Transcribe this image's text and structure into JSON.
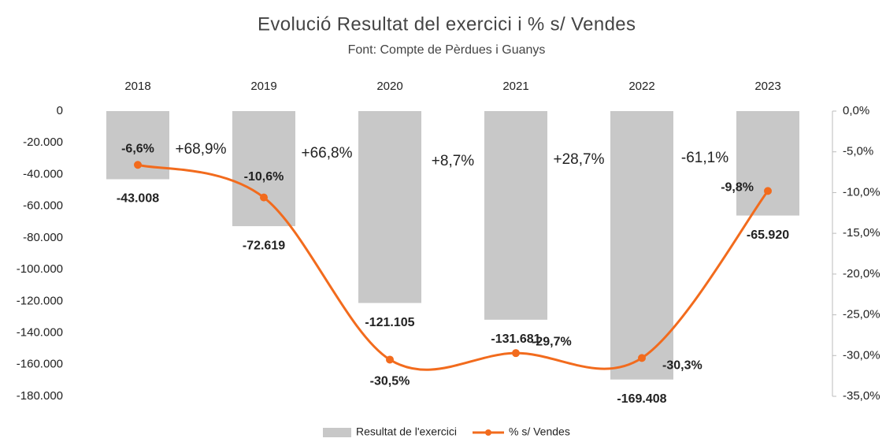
{
  "chart_data": {
    "type": "bar",
    "title": "Evolució Resultat del exercici i % s/ Vendes",
    "subtitle": "Font: Compte de Pèrdues i Guanys",
    "categories": [
      "2018",
      "2019",
      "2020",
      "2021",
      "2022",
      "2023"
    ],
    "series": [
      {
        "name": "Resultat de l'exercici",
        "type": "bar",
        "color": "#c8c8c8",
        "label_color": "#e8141e",
        "values": [
          -43008,
          -72619,
          -121105,
          -131681,
          -169408,
          -65920
        ],
        "value_labels": [
          "-43.008",
          "-72.619",
          "-121.105",
          "-131.681",
          "-169.408",
          "-65.920"
        ]
      },
      {
        "name": "% s/ Vendes",
        "type": "line",
        "axis": "y2",
        "color": "#f26b1d",
        "label_color": "#f07020",
        "values": [
          -6.6,
          -10.6,
          -30.5,
          -29.7,
          -30.3,
          -9.8
        ],
        "value_labels": [
          "-6,6%",
          "-10,6%",
          "-30,5%",
          "-29,7%",
          "-30,3%",
          "-9,8%"
        ]
      }
    ],
    "annotations": [
      {
        "text": "+68,9%",
        "color": "#f0606a"
      },
      {
        "text": "+66,8%",
        "color": "#f0606a"
      },
      {
        "text": "+8,7%",
        "color": "#f0606a"
      },
      {
        "text": "+28,7%",
        "color": "#f0606a"
      },
      {
        "text": "-61,1%",
        "color": "#4cba6b"
      }
    ],
    "ylim": [
      0,
      -180000
    ],
    "yticks": [
      0,
      {
        "value": -20000,
        "label": "-20.000"
      },
      {
        "value": -40000,
        "label": "-40.000"
      },
      {
        "value": -60000,
        "label": "-60.000"
      },
      {
        "value": -80000,
        "label": "-80.000"
      },
      {
        "value": -100000,
        "label": "-100.000"
      },
      {
        "value": -120000,
        "label": "-120.000"
      },
      {
        "value": -140000,
        "label": "-140.000"
      },
      {
        "value": -160000,
        "label": "-160.000"
      },
      {
        "value": -180000,
        "label": "-180.000"
      }
    ],
    "y2lim": [
      0,
      -35
    ],
    "y2ticks": [
      {
        "value": 0,
        "label": "0,0%"
      },
      {
        "value": -5,
        "label": "-5,0%"
      },
      {
        "value": -10,
        "label": "-10,0%"
      },
      {
        "value": -15,
        "label": "-15,0%"
      },
      {
        "value": -20,
        "label": "-20,0%"
      },
      {
        "value": -25,
        "label": "-25,0%"
      },
      {
        "value": -30,
        "label": "-30,0%"
      },
      {
        "value": -35,
        "label": "-35,0%"
      }
    ],
    "legend": "bottom"
  }
}
